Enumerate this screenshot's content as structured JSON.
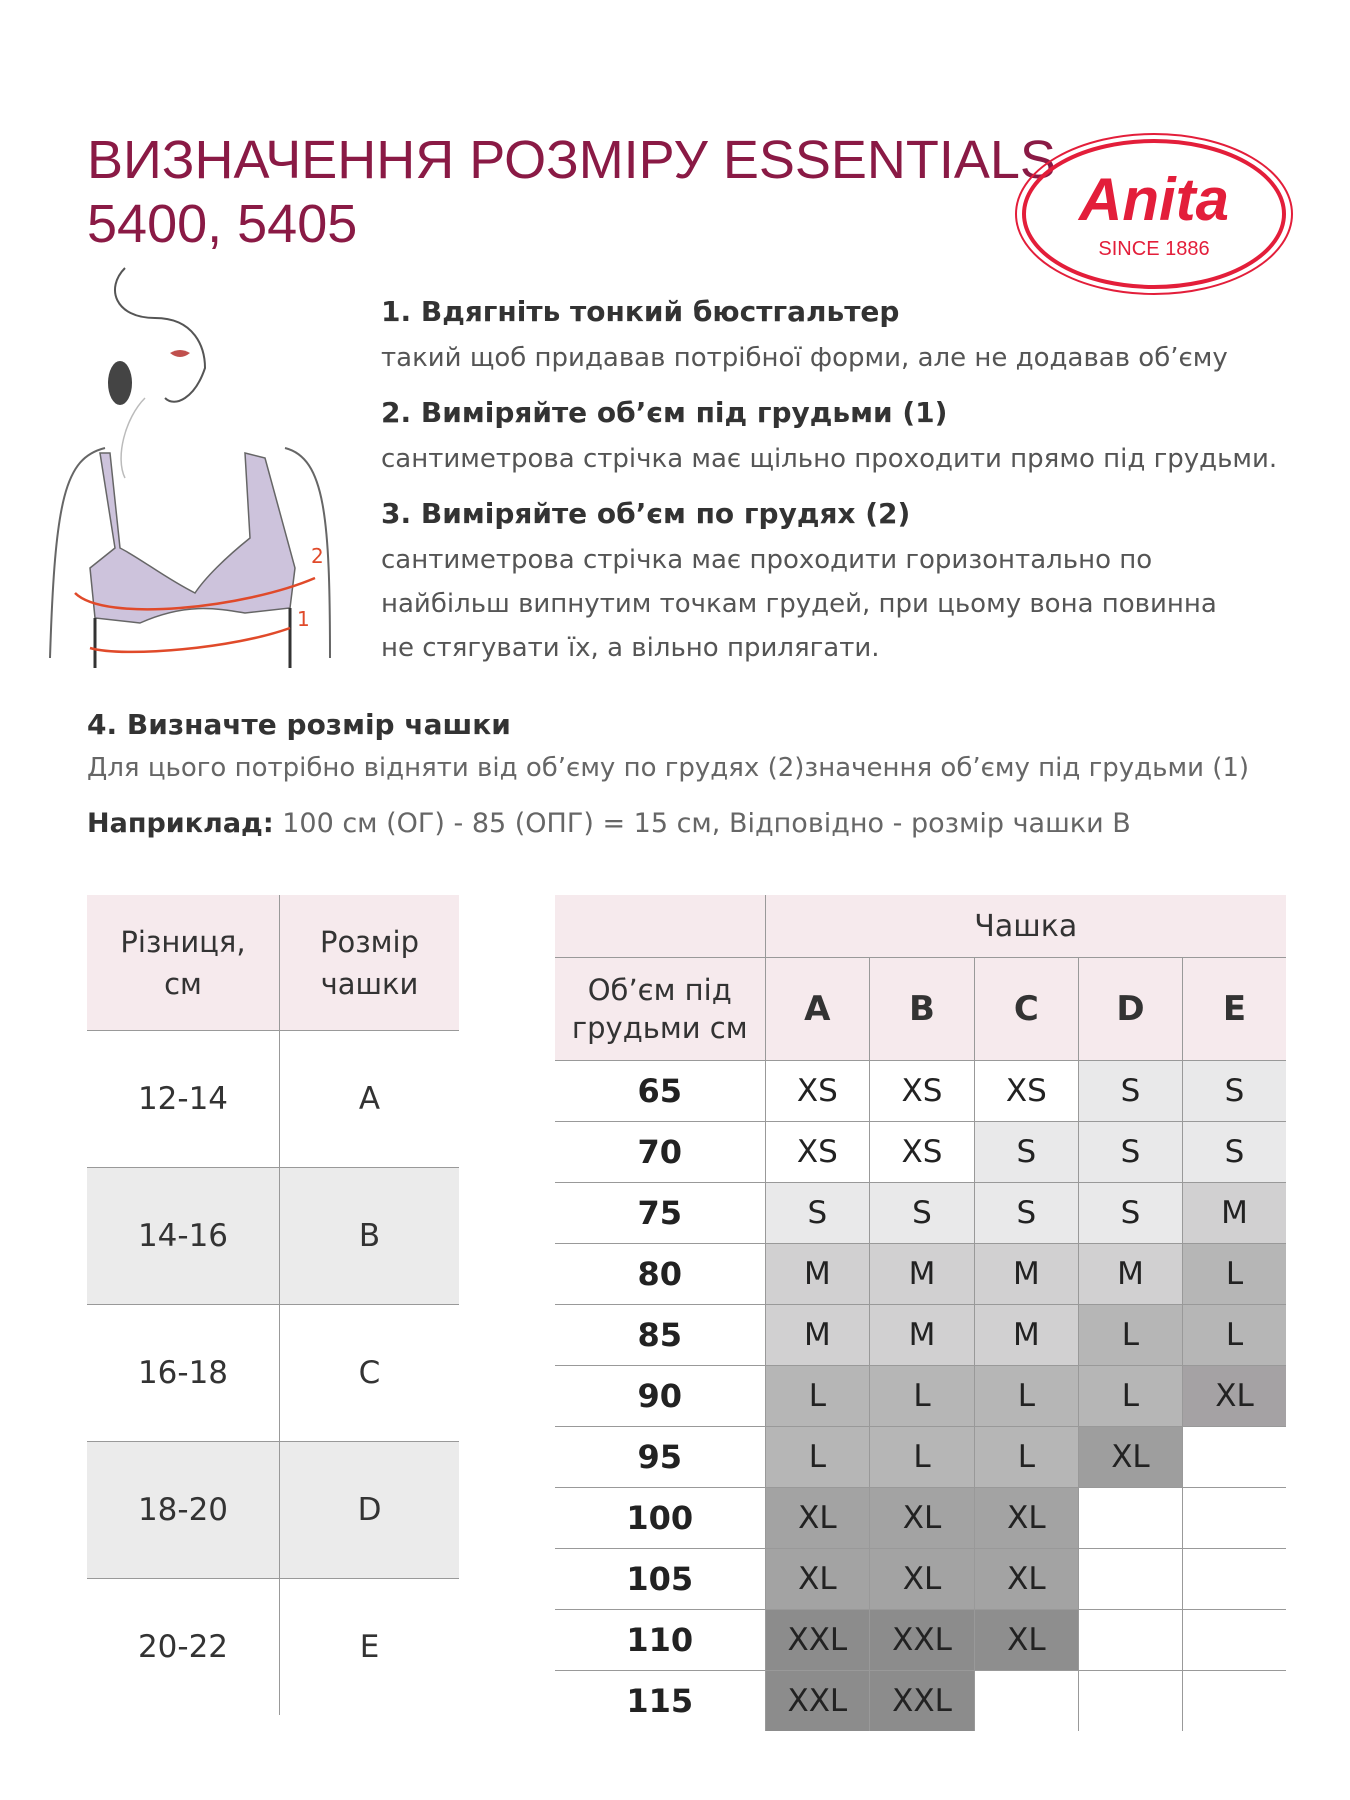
{
  "header": {
    "title_line1": "ВИЗНАЧЕННЯ РОЗМІРУ ESSENTIALS",
    "title_line2": "5400, 5405",
    "title_color": "#8a1a45"
  },
  "logo": {
    "brand": "Anita",
    "tagline": "SINCE 1886",
    "color": "#e31e3a"
  },
  "steps": [
    {
      "heading": "1. Вдягніть тонкий бюстгальтер",
      "body": [
        "такий щоб придавав потрібної форми, але не додавав об’єму"
      ]
    },
    {
      "heading": "2. Виміряйте об’єм під грудьми (1)",
      "body": [
        "сантиметрова стрічка має щільно проходити прямо під грудьми."
      ]
    },
    {
      "heading": "3. Виміряйте об’єм по грудях (2)",
      "body": [
        "сантиметрова стрічка має проходити горизонтально по",
        "найбільш випнутим точкам грудей, при цьому вона повинна",
        "не стягувати їх, а вільно прилягати."
      ]
    }
  ],
  "illustration": {
    "label_1": "1",
    "label_2": "2"
  },
  "section4": {
    "heading": "4. Визначте розмір чашки",
    "body": "Для цього потрібно відняти від об’єму по грудях (2)значення об’єму під грудьми (1)",
    "example_label": "Наприклад:",
    "example_text": " 100 см (ОГ) - 85 (ОПГ) = 15 см, Відповідно - розмір чашки В"
  },
  "cup_table": {
    "headers": [
      "Різниця, см",
      "Розмір чашки"
    ],
    "rows": [
      [
        "12-14",
        "A"
      ],
      [
        "14-16",
        "B"
      ],
      [
        "16-18",
        "C"
      ],
      [
        "18-20",
        "D"
      ],
      [
        "20-22",
        "E"
      ]
    ]
  },
  "size_table": {
    "group_header": "Чашка",
    "band_header": "Об’єм під грудьми см",
    "cups": [
      "A",
      "B",
      "C",
      "D",
      "E"
    ],
    "rows": [
      {
        "band": "65",
        "sizes": [
          "XS",
          "XS",
          "XS",
          "S",
          "S"
        ]
      },
      {
        "band": "70",
        "sizes": [
          "XS",
          "XS",
          "S",
          "S",
          "S"
        ]
      },
      {
        "band": "75",
        "sizes": [
          "S",
          "S",
          "S",
          "S",
          "M"
        ]
      },
      {
        "band": "80",
        "sizes": [
          "M",
          "M",
          "M",
          "M",
          "L"
        ]
      },
      {
        "band": "85",
        "sizes": [
          "M",
          "M",
          "M",
          "L",
          "L"
        ]
      },
      {
        "band": "90",
        "sizes": [
          "L",
          "L",
          "L",
          "L",
          "XL"
        ]
      },
      {
        "band": "95",
        "sizes": [
          "L",
          "L",
          "L",
          "XL",
          ""
        ]
      },
      {
        "band": "100",
        "sizes": [
          "XL",
          "XL",
          "XL",
          "",
          ""
        ]
      },
      {
        "band": "105",
        "sizes": [
          "XL",
          "XL",
          "XL",
          "",
          ""
        ]
      },
      {
        "band": "110",
        "sizes": [
          "XXL",
          "XXL",
          "XL",
          "",
          ""
        ]
      },
      {
        "band": "115",
        "sizes": [
          "XXL",
          "XXL",
          "",
          "",
          ""
        ]
      }
    ],
    "shade_colors": {
      "XS": "#ffffff",
      "S": "#e9e9ea",
      "M": "#d1d0d1",
      "L": "#b6b6b6",
      "XL": "#a3a3a3",
      "XXL": "#8c8c8c",
      "": "#ffffff"
    }
  }
}
